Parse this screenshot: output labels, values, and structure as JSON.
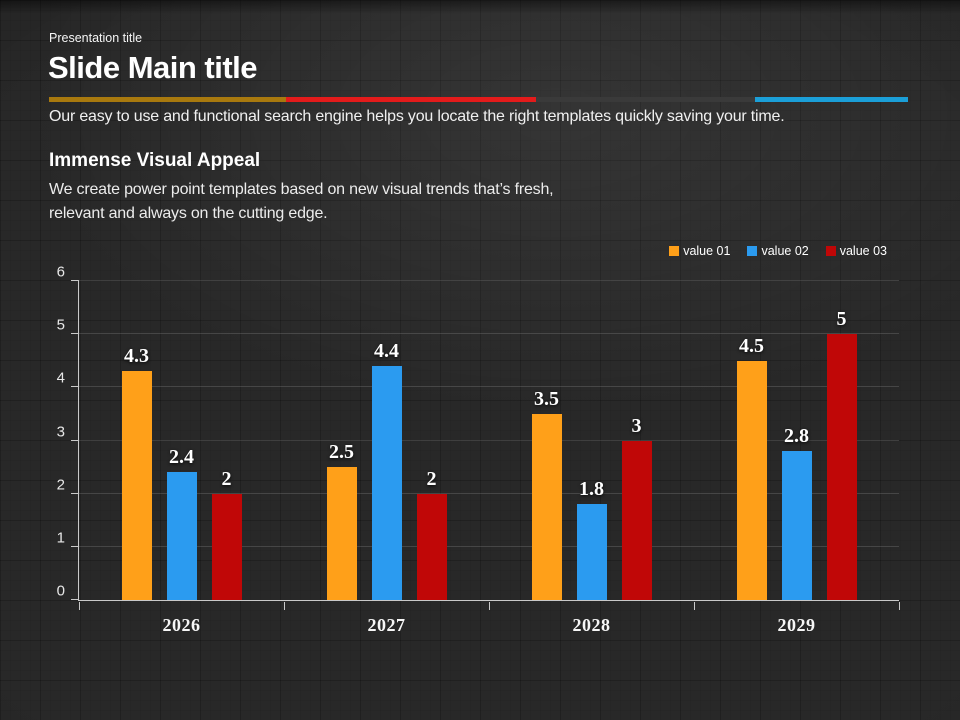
{
  "slide": {
    "kicker": "Presentation title",
    "title": "Slide Main title",
    "subtitle": "Our easy to use and functional search engine helps you locate the right templates quickly saving your time.",
    "section_heading": "Immense Visual Appeal",
    "section_body": "We create power point templates based on new visual trends that’s fresh,\nrelevant and always on the cutting edge."
  },
  "divider": {
    "segments": [
      {
        "name": "gold",
        "color": "#a8790e",
        "width_pct": 27.6
      },
      {
        "name": "red",
        "color": "#e31b1b",
        "width_pct": 29.1
      },
      {
        "name": "dark-gray",
        "color": "#3a3a3a",
        "width_pct": 25.5
      },
      {
        "name": "blue",
        "color": "#1b9fd8",
        "width_pct": 17.8
      }
    ]
  },
  "chart_data": {
    "type": "bar",
    "categories": [
      "2026",
      "2027",
      "2028",
      "2029"
    ],
    "series": [
      {
        "name": "value 01",
        "color": "#ffa019",
        "values": [
          4.3,
          2.5,
          3.5,
          4.5
        ]
      },
      {
        "name": "value 02",
        "color": "#2b9bf0",
        "values": [
          2.4,
          4.4,
          1.8,
          2.8
        ]
      },
      {
        "name": "value 03",
        "color": "#c00707",
        "values": [
          2,
          2,
          3,
          5
        ]
      }
    ],
    "ylim": [
      0,
      6
    ],
    "yticks": [
      0,
      1,
      2,
      3,
      4,
      5,
      6
    ],
    "grid": "horizontal",
    "legend_position": "top-right",
    "data_labels": true
  }
}
